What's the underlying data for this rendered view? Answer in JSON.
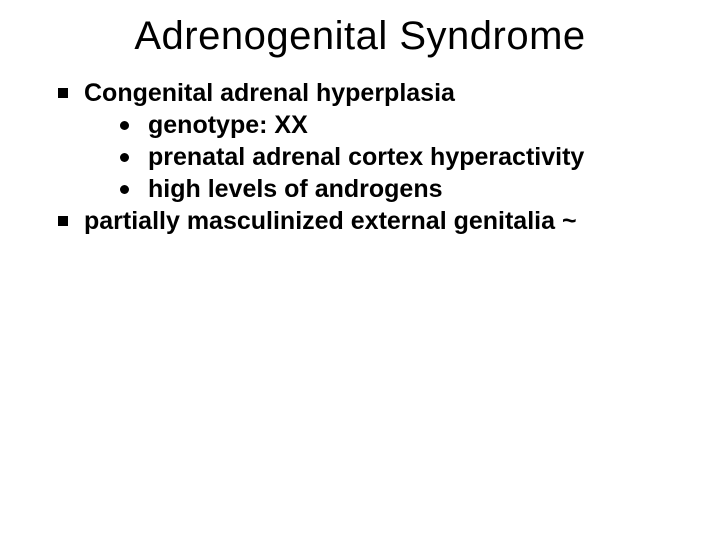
{
  "slide": {
    "title": "Adrenogenital Syndrome",
    "bullets": [
      {
        "text": "Congenital adrenal hyperplasia",
        "sub": [
          {
            "text": "genotype: XX"
          },
          {
            "text": "prenatal adrenal cortex hyperactivity"
          },
          {
            "text": "high levels of androgens"
          }
        ]
      },
      {
        "text": "partially masculinized external genitalia ~",
        "sub": []
      }
    ]
  },
  "style": {
    "background_color": "#ffffff",
    "text_color": "#000000",
    "title_fontsize": 40,
    "title_weight": 400,
    "body_fontsize": 25,
    "body_weight": 700,
    "level1_marker": "square",
    "level1_marker_size": 10,
    "level2_marker": "disc",
    "level2_marker_size": 9,
    "font_family": "Arial"
  }
}
